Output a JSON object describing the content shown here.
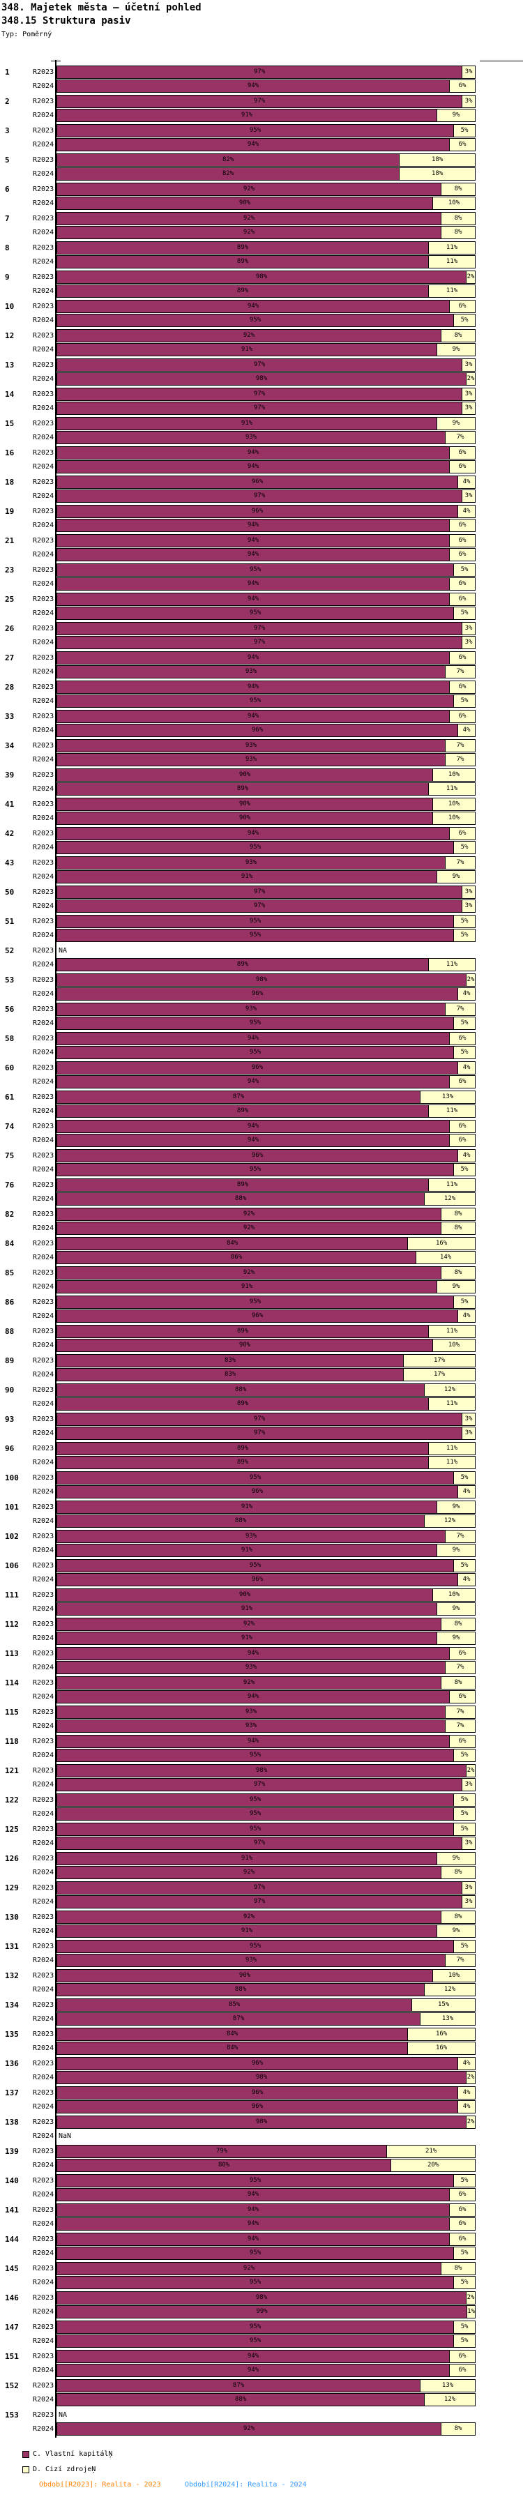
{
  "header": {
    "title1": "348. Majetek města — účetní pohled",
    "title2": "348.15 Struktura pasiv",
    "type_label": "Typ: Poměrný"
  },
  "legend": [
    {
      "label": "C. Vlastní kapitálŅ",
      "color": "#993366"
    },
    {
      "label": "D. Cizí zdrojeŅ",
      "color": "#FFFFCC"
    }
  ],
  "footer": [
    {
      "label": "Období[R2023]: Realita - 2023",
      "color": "#FF8000"
    },
    {
      "label": "Období[R2024]: Realita - 2024",
      "color": "#3399FF"
    }
  ],
  "chart_data": {
    "type": "bar",
    "orientation": "horizontal",
    "stacked": true,
    "unit": "%",
    "xlim": [
      0,
      100
    ],
    "grid": false,
    "legend_position": "bottom-left",
    "series_names": [
      "C. Vlastní kapitál",
      "D. Cizí zdroje"
    ],
    "periods": [
      "R2023",
      "R2024"
    ],
    "colors": {
      "own": "#993366",
      "foreign": "#FFFFCC"
    },
    "missing_values": {
      "52.R2023": "NA",
      "138.R2024": "NaN",
      "153.R2023": "NA"
    },
    "groups": [
      {
        "id": "1",
        "R2023": [
          97,
          3
        ],
        "R2024": [
          94,
          6
        ]
      },
      {
        "id": "2",
        "R2023": [
          97,
          3
        ],
        "R2024": [
          91,
          9
        ]
      },
      {
        "id": "3",
        "R2023": [
          95,
          5
        ],
        "R2024": [
          94,
          6
        ]
      },
      {
        "id": "5",
        "R2023": [
          82,
          18
        ],
        "R2024": [
          82,
          18
        ]
      },
      {
        "id": "6",
        "R2023": [
          92,
          8
        ],
        "R2024": [
          90,
          10
        ]
      },
      {
        "id": "7",
        "R2023": [
          92,
          8
        ],
        "R2024": [
          92,
          8
        ]
      },
      {
        "id": "8",
        "R2023": [
          89,
          11
        ],
        "R2024": [
          89,
          11
        ]
      },
      {
        "id": "9",
        "R2023": [
          98,
          2
        ],
        "R2024": [
          89,
          11
        ]
      },
      {
        "id": "10",
        "R2023": [
          94,
          6
        ],
        "R2024": [
          95,
          5
        ]
      },
      {
        "id": "12",
        "R2023": [
          92,
          8
        ],
        "R2024": [
          91,
          9
        ]
      },
      {
        "id": "13",
        "R2023": [
          97,
          3
        ],
        "R2024": [
          98,
          2
        ]
      },
      {
        "id": "14",
        "R2023": [
          97,
          3
        ],
        "R2024": [
          97,
          3
        ]
      },
      {
        "id": "15",
        "R2023": [
          91,
          9
        ],
        "R2024": [
          93,
          7
        ]
      },
      {
        "id": "16",
        "R2023": [
          94,
          6
        ],
        "R2024": [
          94,
          6
        ]
      },
      {
        "id": "18",
        "R2023": [
          96,
          4
        ],
        "R2024": [
          97,
          3
        ]
      },
      {
        "id": "19",
        "R2023": [
          96,
          4
        ],
        "R2024": [
          94,
          6
        ]
      },
      {
        "id": "21",
        "R2023": [
          94,
          6
        ],
        "R2024": [
          94,
          6
        ]
      },
      {
        "id": "23",
        "R2023": [
          95,
          5
        ],
        "R2024": [
          94,
          6
        ]
      },
      {
        "id": "25",
        "R2023": [
          94,
          6
        ],
        "R2024": [
          95,
          5
        ]
      },
      {
        "id": "26",
        "R2023": [
          97,
          3
        ],
        "R2024": [
          97,
          3
        ]
      },
      {
        "id": "27",
        "R2023": [
          94,
          6
        ],
        "R2024": [
          93,
          7
        ]
      },
      {
        "id": "28",
        "R2023": [
          94,
          6
        ],
        "R2024": [
          95,
          5
        ]
      },
      {
        "id": "33",
        "R2023": [
          94,
          6
        ],
        "R2024": [
          96,
          4
        ]
      },
      {
        "id": "34",
        "R2023": [
          93,
          7
        ],
        "R2024": [
          93,
          7
        ]
      },
      {
        "id": "39",
        "R2023": [
          90,
          10
        ],
        "R2024": [
          89,
          11
        ]
      },
      {
        "id": "41",
        "R2023": [
          90,
          10
        ],
        "R2024": [
          90,
          10
        ]
      },
      {
        "id": "42",
        "R2023": [
          94,
          6
        ],
        "R2024": [
          95,
          5
        ]
      },
      {
        "id": "43",
        "R2023": [
          93,
          7
        ],
        "R2024": [
          91,
          9
        ]
      },
      {
        "id": "50",
        "R2023": [
          97,
          3
        ],
        "R2024": [
          97,
          3
        ]
      },
      {
        "id": "51",
        "R2023": [
          95,
          5
        ],
        "R2024": [
          95,
          5
        ]
      },
      {
        "id": "52",
        "R2023": "NA",
        "R2024": [
          89,
          11
        ]
      },
      {
        "id": "53",
        "R2023": [
          98,
          2
        ],
        "R2024": [
          96,
          4
        ]
      },
      {
        "id": "56",
        "R2023": [
          93,
          7
        ],
        "R2024": [
          95,
          5
        ]
      },
      {
        "id": "58",
        "R2023": [
          94,
          6
        ],
        "R2024": [
          95,
          5
        ]
      },
      {
        "id": "60",
        "R2023": [
          96,
          4
        ],
        "R2024": [
          94,
          6
        ]
      },
      {
        "id": "61",
        "R2023": [
          87,
          13
        ],
        "R2024": [
          89,
          11
        ]
      },
      {
        "id": "74",
        "R2023": [
          94,
          6
        ],
        "R2024": [
          94,
          6
        ]
      },
      {
        "id": "75",
        "R2023": [
          96,
          4
        ],
        "R2024": [
          95,
          5
        ]
      },
      {
        "id": "76",
        "R2023": [
          89,
          11
        ],
        "R2024": [
          88,
          12
        ]
      },
      {
        "id": "82",
        "R2023": [
          92,
          8
        ],
        "R2024": [
          92,
          8
        ]
      },
      {
        "id": "84",
        "R2023": [
          84,
          16
        ],
        "R2024": [
          86,
          14
        ]
      },
      {
        "id": "85",
        "R2023": [
          92,
          8
        ],
        "R2024": [
          91,
          9
        ]
      },
      {
        "id": "86",
        "R2023": [
          95,
          5
        ],
        "R2024": [
          96,
          4
        ]
      },
      {
        "id": "88",
        "R2023": [
          89,
          11
        ],
        "R2024": [
          90,
          10
        ]
      },
      {
        "id": "89",
        "R2023": [
          83,
          17
        ],
        "R2024": [
          83,
          17
        ]
      },
      {
        "id": "90",
        "R2023": [
          88,
          12
        ],
        "R2024": [
          89,
          11
        ]
      },
      {
        "id": "93",
        "R2023": [
          97,
          3
        ],
        "R2024": [
          97,
          3
        ]
      },
      {
        "id": "96",
        "R2023": [
          89,
          11
        ],
        "R2024": [
          89,
          11
        ]
      },
      {
        "id": "100",
        "R2023": [
          95,
          5
        ],
        "R2024": [
          96,
          4
        ]
      },
      {
        "id": "101",
        "R2023": [
          91,
          9
        ],
        "R2024": [
          88,
          12
        ]
      },
      {
        "id": "102",
        "R2023": [
          93,
          7
        ],
        "R2024": [
          91,
          9
        ]
      },
      {
        "id": "106",
        "R2023": [
          95,
          5
        ],
        "R2024": [
          96,
          4
        ]
      },
      {
        "id": "111",
        "R2023": [
          90,
          10
        ],
        "R2024": [
          91,
          9
        ]
      },
      {
        "id": "112",
        "R2023": [
          92,
          8
        ],
        "R2024": [
          91,
          9
        ]
      },
      {
        "id": "113",
        "R2023": [
          94,
          6
        ],
        "R2024": [
          93,
          7
        ]
      },
      {
        "id": "114",
        "R2023": [
          92,
          8
        ],
        "R2024": [
          94,
          6
        ]
      },
      {
        "id": "115",
        "R2023": [
          93,
          7
        ],
        "R2024": [
          93,
          7
        ]
      },
      {
        "id": "118",
        "R2023": [
          94,
          6
        ],
        "R2024": [
          95,
          5
        ]
      },
      {
        "id": "121",
        "R2023": [
          98,
          2
        ],
        "R2024": [
          97,
          3
        ]
      },
      {
        "id": "122",
        "R2023": [
          95,
          5
        ],
        "R2024": [
          95,
          5
        ]
      },
      {
        "id": "125",
        "R2023": [
          95,
          5
        ],
        "R2024": [
          97,
          3
        ]
      },
      {
        "id": "126",
        "R2023": [
          91,
          9
        ],
        "R2024": [
          92,
          8
        ]
      },
      {
        "id": "129",
        "R2023": [
          97,
          3
        ],
        "R2024": [
          97,
          3
        ]
      },
      {
        "id": "130",
        "R2023": [
          92,
          8
        ],
        "R2024": [
          91,
          9
        ]
      },
      {
        "id": "131",
        "R2023": [
          95,
          5
        ],
        "R2024": [
          93,
          7
        ]
      },
      {
        "id": "132",
        "R2023": [
          90,
          10
        ],
        "R2024": [
          88,
          12
        ]
      },
      {
        "id": "134",
        "R2023": [
          85,
          15
        ],
        "R2024": [
          87,
          13
        ]
      },
      {
        "id": "135",
        "R2023": [
          84,
          16
        ],
        "R2024": [
          84,
          16
        ]
      },
      {
        "id": "136",
        "R2023": [
          96,
          4
        ],
        "R2024": [
          98,
          2
        ]
      },
      {
        "id": "137",
        "R2023": [
          96,
          4
        ],
        "R2024": [
          96,
          4
        ]
      },
      {
        "id": "138",
        "R2023": [
          98,
          2
        ],
        "R2024": "NaN"
      },
      {
        "id": "139",
        "R2023": [
          79,
          21
        ],
        "R2024": [
          80,
          20
        ]
      },
      {
        "id": "140",
        "R2023": [
          95,
          5
        ],
        "R2024": [
          94,
          6
        ]
      },
      {
        "id": "141",
        "R2023": [
          94,
          6
        ],
        "R2024": [
          94,
          6
        ]
      },
      {
        "id": "144",
        "R2023": [
          94,
          6
        ],
        "R2024": [
          95,
          5
        ]
      },
      {
        "id": "145",
        "R2023": [
          92,
          8
        ],
        "R2024": [
          95,
          5
        ]
      },
      {
        "id": "146",
        "R2023": [
          98,
          2
        ],
        "R2024": [
          99,
          1
        ]
      },
      {
        "id": "147",
        "R2023": [
          95,
          5
        ],
        "R2024": [
          95,
          5
        ]
      },
      {
        "id": "151",
        "R2023": [
          94,
          6
        ],
        "R2024": [
          94,
          6
        ]
      },
      {
        "id": "152",
        "R2023": [
          87,
          13
        ],
        "R2024": [
          88,
          12
        ]
      },
      {
        "id": "153",
        "R2023": "NA",
        "R2024": [
          92,
          8
        ]
      }
    ]
  }
}
